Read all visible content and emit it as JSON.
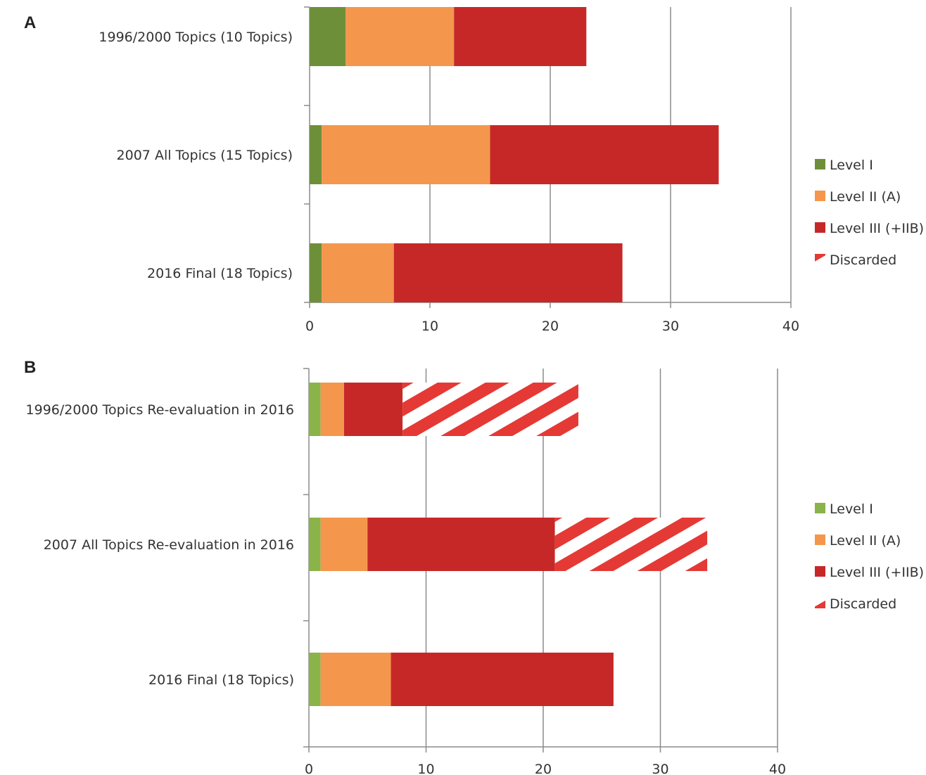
{
  "chart_data": [
    {
      "panel": "A",
      "type": "bar",
      "orientation": "horizontal",
      "stacked": true,
      "categories": [
        "1996/2000 Topics (10 Topics)",
        "2007 All Topics (15 Topics)",
        "2016 Final (18 Topics)"
      ],
      "series": [
        {
          "name": "Level I",
          "color": "#6e8f3a",
          "values": [
            3,
            1,
            1
          ]
        },
        {
          "name": "Level II (A)",
          "color": "#f4974c",
          "values": [
            9,
            14,
            6
          ]
        },
        {
          "name": "Level III (+IIB)",
          "color": "#c62828",
          "values": [
            11,
            19,
            19
          ]
        },
        {
          "name": "Discarded",
          "color": "#e53935",
          "pattern": "hatch",
          "values": [
            0,
            0,
            0
          ]
        }
      ],
      "xlim": [
        0,
        40
      ],
      "xticks": [
        0,
        10,
        20,
        30,
        40
      ],
      "grid": true,
      "legend": "right"
    },
    {
      "panel": "B",
      "type": "bar",
      "orientation": "horizontal",
      "stacked": true,
      "categories": [
        "1996/2000 Topics Re-evaluation in 2016",
        "2007 All Topics Re-evaluation in 2016",
        "2016 Final (18 Topics)"
      ],
      "series": [
        {
          "name": "Level I",
          "color": "#8ab34a",
          "values": [
            1,
            1,
            1
          ]
        },
        {
          "name": "Level II (A)",
          "color": "#f4974c",
          "values": [
            2,
            4,
            6
          ]
        },
        {
          "name": "Level III (+IIB)",
          "color": "#c62828",
          "values": [
            5,
            16,
            19
          ]
        },
        {
          "name": "Discarded",
          "color": "#e53935",
          "pattern": "hatch",
          "values": [
            15,
            13,
            0
          ]
        }
      ],
      "xlim": [
        0,
        40
      ],
      "xticks": [
        0,
        10,
        20,
        30,
        40
      ],
      "grid": true,
      "legend": "right"
    }
  ]
}
